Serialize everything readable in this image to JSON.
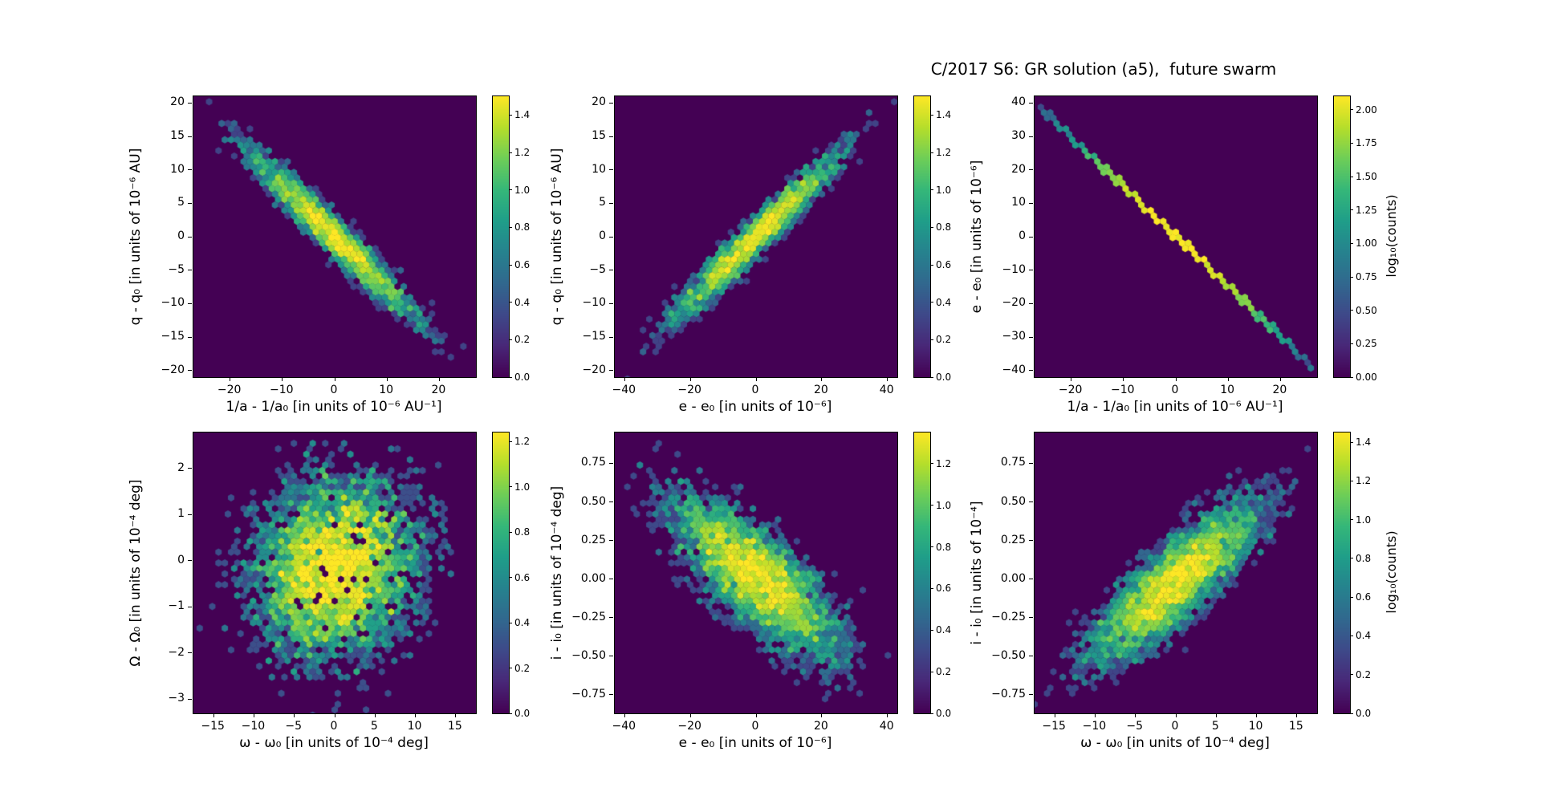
{
  "figure": {
    "title": "C/2017 S6: GR solution (a5),  future swarm",
    "background": "#ffffff"
  },
  "colormap": {
    "name": "viridis",
    "stops": [
      "#440154",
      "#482878",
      "#3e4989",
      "#31688e",
      "#26828e",
      "#1f9e89",
      "#35b779",
      "#6ece58",
      "#b5de2b",
      "#fde725"
    ]
  },
  "chart_data": [
    {
      "id": "q_vs_inva",
      "type": "hexbin",
      "xlabel": "1/a - 1/a₀ [in units of 10⁻⁶ AU⁻¹]",
      "ylabel": "q - q₀ [in units of 10⁻⁶ AU]",
      "xlim": [
        -27,
        27
      ],
      "ylim": [
        -21,
        21
      ],
      "xticks": [
        {
          "v": -20,
          "t": "−20"
        },
        {
          "v": -10,
          "t": "−10"
        },
        {
          "v": 0,
          "t": "0"
        },
        {
          "v": 10,
          "t": "10"
        },
        {
          "v": 20,
          "t": "20"
        }
      ],
      "yticks": [
        {
          "v": 20,
          "t": "20"
        },
        {
          "v": 15,
          "t": "15"
        },
        {
          "v": 10,
          "t": "10"
        },
        {
          "v": 5,
          "t": "5"
        },
        {
          "v": 0,
          "t": "0"
        },
        {
          "v": -5,
          "t": "−5"
        },
        {
          "v": -10,
          "t": "−10"
        },
        {
          "v": -15,
          "t": "−15"
        },
        {
          "v": -20,
          "t": "−20"
        }
      ],
      "colorbar": {
        "vmax": 1.5,
        "label": "",
        "ticks": [
          {
            "v": 0,
            "t": "0.0"
          },
          {
            "v": 0.2,
            "t": "0.2"
          },
          {
            "v": 0.4,
            "t": "0.4"
          },
          {
            "v": 0.6,
            "t": "0.6"
          },
          {
            "v": 0.8,
            "t": "0.8"
          },
          {
            "v": 1.0,
            "t": "1.0"
          },
          {
            "v": 1.2,
            "t": "1.2"
          },
          {
            "v": 1.4,
            "t": "1.4"
          }
        ]
      },
      "distribution": {
        "shape": "gaussian2d",
        "center": [
          0,
          0
        ],
        "sigma": [
          8.6,
          6.7
        ],
        "rho": -0.965,
        "peak_log10_counts": 1.5,
        "seed": 11
      }
    },
    {
      "id": "q_vs_e",
      "type": "hexbin",
      "xlabel": "e - e₀ [in units of 10⁻⁶]",
      "ylabel": "q - q₀ [in units of 10⁻⁶ AU]",
      "xlim": [
        -43,
        43
      ],
      "ylim": [
        -21,
        21
      ],
      "xticks": [
        {
          "v": -40,
          "t": "−40"
        },
        {
          "v": -20,
          "t": "−20"
        },
        {
          "v": 0,
          "t": "0"
        },
        {
          "v": 20,
          "t": "20"
        },
        {
          "v": 40,
          "t": "40"
        }
      ],
      "yticks": [
        {
          "v": 20,
          "t": "20"
        },
        {
          "v": 15,
          "t": "15"
        },
        {
          "v": 10,
          "t": "10"
        },
        {
          "v": 5,
          "t": "5"
        },
        {
          "v": 0,
          "t": "0"
        },
        {
          "v": -5,
          "t": "−5"
        },
        {
          "v": -10,
          "t": "−10"
        },
        {
          "v": -15,
          "t": "−15"
        },
        {
          "v": -20,
          "t": "−20"
        }
      ],
      "colorbar": {
        "vmax": 1.5,
        "label": "",
        "ticks": [
          {
            "v": 0,
            "t": "0.0"
          },
          {
            "v": 0.2,
            "t": "0.2"
          },
          {
            "v": 0.4,
            "t": "0.4"
          },
          {
            "v": 0.6,
            "t": "0.6"
          },
          {
            "v": 0.8,
            "t": "0.8"
          },
          {
            "v": 1.0,
            "t": "1.0"
          },
          {
            "v": 1.2,
            "t": "1.2"
          },
          {
            "v": 1.4,
            "t": "1.4"
          }
        ]
      },
      "distribution": {
        "shape": "gaussian2d",
        "center": [
          0,
          0
        ],
        "sigma": [
          13.7,
          6.7
        ],
        "rho": 0.965,
        "peak_log10_counts": 1.5,
        "seed": 22
      }
    },
    {
      "id": "e_vs_inva",
      "type": "hexbin",
      "xlabel": "1/a - 1/a₀ [in units of 10⁻⁶ AU⁻¹]",
      "ylabel": "e - e₀ [in units of 10⁻⁶]",
      "xlim": [
        -27,
        27
      ],
      "ylim": [
        -42,
        42
      ],
      "xticks": [
        {
          "v": -20,
          "t": "−20"
        },
        {
          "v": -10,
          "t": "−10"
        },
        {
          "v": 0,
          "t": "0"
        },
        {
          "v": 10,
          "t": "10"
        },
        {
          "v": 20,
          "t": "20"
        }
      ],
      "yticks": [
        {
          "v": 40,
          "t": "40"
        },
        {
          "v": 30,
          "t": "30"
        },
        {
          "v": 20,
          "t": "20"
        },
        {
          "v": 10,
          "t": "10"
        },
        {
          "v": 0,
          "t": "0"
        },
        {
          "v": -10,
          "t": "−10"
        },
        {
          "v": -20,
          "t": "−20"
        },
        {
          "v": -30,
          "t": "−30"
        },
        {
          "v": -40,
          "t": "−40"
        }
      ],
      "colorbar": {
        "vmax": 2.1,
        "label": "log₁₀(counts)",
        "ticks": [
          {
            "v": 0,
            "t": "0.00"
          },
          {
            "v": 0.25,
            "t": "0.25"
          },
          {
            "v": 0.5,
            "t": "0.50"
          },
          {
            "v": 0.75,
            "t": "0.75"
          },
          {
            "v": 1.0,
            "t": "1.00"
          },
          {
            "v": 1.25,
            "t": "1.25"
          },
          {
            "v": 1.5,
            "t": "1.50"
          },
          {
            "v": 1.75,
            "t": "1.75"
          },
          {
            "v": 2.0,
            "t": "2.00"
          }
        ]
      },
      "distribution": {
        "shape": "line",
        "slope": -1.4815,
        "intercept": 0,
        "sigma_x": 9.6,
        "peak_log10_counts": 2.1,
        "seed": 33
      }
    },
    {
      "id": "Omega_vs_omega",
      "type": "hexbin",
      "xlabel": "ω - ω₀ [in units of 10⁻⁴ deg]",
      "ylabel": "Ω - Ω₀ [in units of 10⁻⁴ deg]",
      "xlim": [
        -17.5,
        17.5
      ],
      "ylim": [
        -3.31,
        2.78
      ],
      "xticks": [
        {
          "v": -15,
          "t": "−15"
        },
        {
          "v": -10,
          "t": "−10"
        },
        {
          "v": -5,
          "t": "−5"
        },
        {
          "v": 0,
          "t": "0"
        },
        {
          "v": 5,
          "t": "5"
        },
        {
          "v": 10,
          "t": "10"
        },
        {
          "v": 15,
          "t": "15"
        }
      ],
      "yticks": [
        {
          "v": 2,
          "t": "2"
        },
        {
          "v": 1,
          "t": "1"
        },
        {
          "v": 0,
          "t": "0"
        },
        {
          "v": -1,
          "t": "−1"
        },
        {
          "v": -2,
          "t": "−2"
        },
        {
          "v": -3,
          "t": "−3"
        }
      ],
      "colorbar": {
        "vmax": 1.24,
        "label": "",
        "ticks": [
          {
            "v": 0,
            "t": "0.0"
          },
          {
            "v": 0.2,
            "t": "0.2"
          },
          {
            "v": 0.4,
            "t": "0.4"
          },
          {
            "v": 0.6,
            "t": "0.6"
          },
          {
            "v": 0.8,
            "t": "0.8"
          },
          {
            "v": 1.0,
            "t": "1.0"
          },
          {
            "v": 1.2,
            "t": "1.2"
          }
        ]
      },
      "distribution": {
        "shape": "gaussian2d",
        "center": [
          0,
          -0.15
        ],
        "sigma": [
          5.6,
          1.05
        ],
        "rho": 0.12,
        "peak_log10_counts": 1.27,
        "dropout": 0.06,
        "seed": 44
      }
    },
    {
      "id": "i_vs_e",
      "type": "hexbin",
      "xlabel": "e - e₀ [in units of 10⁻⁶]",
      "ylabel": "i - i₀ [in units of 10⁻⁴ deg]",
      "xlim": [
        -43,
        43
      ],
      "ylim": [
        -0.87,
        0.95
      ],
      "xticks": [
        {
          "v": -40,
          "t": "−40"
        },
        {
          "v": -20,
          "t": "−20"
        },
        {
          "v": 0,
          "t": "0"
        },
        {
          "v": 20,
          "t": "20"
        },
        {
          "v": 40,
          "t": "40"
        }
      ],
      "yticks": [
        {
          "v": 0.75,
          "t": "0.75"
        },
        {
          "v": 0.5,
          "t": "0.50"
        },
        {
          "v": 0.25,
          "t": "0.25"
        },
        {
          "v": 0,
          "t": "0.00"
        },
        {
          "v": -0.25,
          "t": "−0.25"
        },
        {
          "v": -0.5,
          "t": "−0.50"
        },
        {
          "v": -0.75,
          "t": "−0.75"
        }
      ],
      "colorbar": {
        "vmax": 1.35,
        "label": "",
        "ticks": [
          {
            "v": 0,
            "t": "0.0"
          },
          {
            "v": 0.2,
            "t": "0.2"
          },
          {
            "v": 0.4,
            "t": "0.4"
          },
          {
            "v": 0.6,
            "t": "0.6"
          },
          {
            "v": 0.8,
            "t": "0.8"
          },
          {
            "v": 1.0,
            "t": "1.0"
          },
          {
            "v": 1.2,
            "t": "1.2"
          }
        ]
      },
      "distribution": {
        "shape": "gaussian2d",
        "center": [
          0,
          0.02
        ],
        "sigma": [
          13.7,
          0.28
        ],
        "rho": -0.76,
        "peak_log10_counts": 1.35,
        "seed": 55
      }
    },
    {
      "id": "i_vs_omega",
      "type": "hexbin",
      "xlabel": "ω - ω₀ [in units of 10⁻⁴ deg]",
      "ylabel": "i - i₀ [in units of 10⁻⁴]",
      "xlim": [
        -17.5,
        17.5
      ],
      "ylim": [
        -0.87,
        0.95
      ],
      "xticks": [
        {
          "v": -15,
          "t": "−15"
        },
        {
          "v": -10,
          "t": "−10"
        },
        {
          "v": -5,
          "t": "−5"
        },
        {
          "v": 0,
          "t": "0"
        },
        {
          "v": 5,
          "t": "5"
        },
        {
          "v": 10,
          "t": "10"
        },
        {
          "v": 15,
          "t": "15"
        }
      ],
      "yticks": [
        {
          "v": 0.75,
          "t": "0.75"
        },
        {
          "v": 0.5,
          "t": "0.50"
        },
        {
          "v": 0.25,
          "t": "0.25"
        },
        {
          "v": 0,
          "t": "0.00"
        },
        {
          "v": -0.25,
          "t": "−0.25"
        },
        {
          "v": -0.5,
          "t": "−0.50"
        },
        {
          "v": -0.75,
          "t": "−0.75"
        }
      ],
      "colorbar": {
        "vmax": 1.45,
        "label": "log₁₀(counts)",
        "ticks": [
          {
            "v": 0,
            "t": "0.0"
          },
          {
            "v": 0.2,
            "t": "0.2"
          },
          {
            "v": 0.4,
            "t": "0.4"
          },
          {
            "v": 0.6,
            "t": "0.6"
          },
          {
            "v": 0.8,
            "t": "0.8"
          },
          {
            "v": 1.0,
            "t": "1.0"
          },
          {
            "v": 1.2,
            "t": "1.2"
          },
          {
            "v": 1.4,
            "t": "1.4"
          }
        ]
      },
      "distribution": {
        "shape": "gaussian2d",
        "center": [
          0,
          -0.02
        ],
        "sigma": [
          5.6,
          0.28
        ],
        "rho": 0.84,
        "peak_log10_counts": 1.45,
        "seed": 66
      }
    }
  ]
}
